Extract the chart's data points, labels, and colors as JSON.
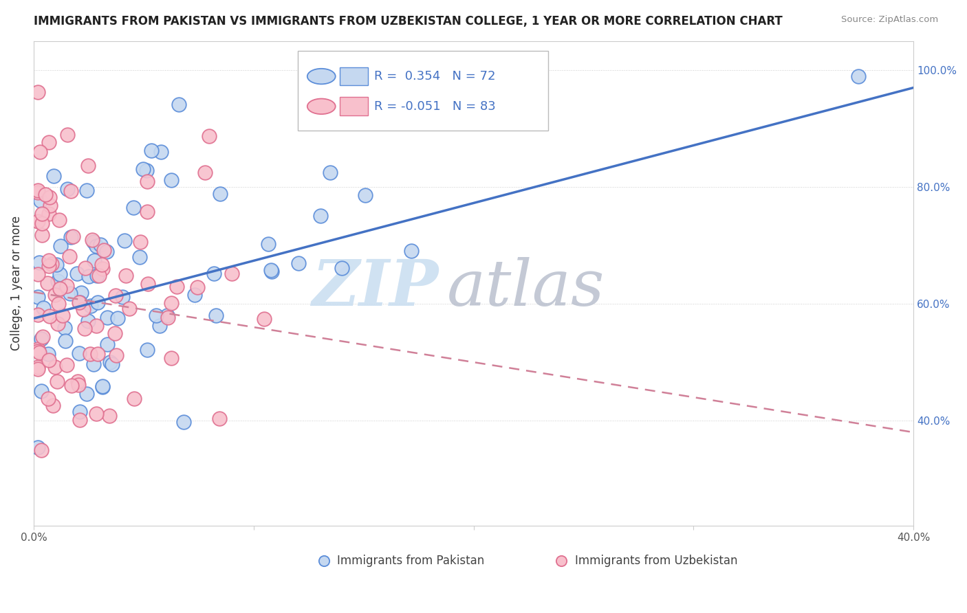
{
  "title": "IMMIGRANTS FROM PAKISTAN VS IMMIGRANTS FROM UZBEKISTAN COLLEGE, 1 YEAR OR MORE CORRELATION CHART",
  "source": "Source: ZipAtlas.com",
  "ylabel": "College, 1 year or more",
  "xlim": [
    0.0,
    0.4
  ],
  "ylim": [
    0.22,
    1.05
  ],
  "ytick_positions": [
    0.4,
    0.6,
    0.8,
    1.0
  ],
  "ytick_labels": [
    "40.0%",
    "60.0%",
    "80.0%",
    "100.0%"
  ],
  "xtick_positions": [
    0.0,
    0.1,
    0.2,
    0.3,
    0.4
  ],
  "xtick_labels": [
    "0.0%",
    "",
    "",
    "",
    "40.0%"
  ],
  "pakistan_R": 0.354,
  "pakistan_N": 72,
  "uzbekistan_R": -0.051,
  "uzbekistan_N": 83,
  "pakistan_color": "#c5d8f0",
  "uzbekistan_color": "#f8c0cc",
  "pakistan_edge_color": "#5b8dd9",
  "uzbekistan_edge_color": "#e07090",
  "pakistan_line_color": "#4472c4",
  "uzbekistan_line_color": "#d08098",
  "legend_label_pakistan": "Immigrants from Pakistan",
  "legend_label_uzbekistan": "Immigrants from Uzbekistan",
  "watermark_zip": "ZIP",
  "watermark_atlas": "atlas",
  "r_n_color": "#4472c4",
  "legend_box_color": "#4472c4",
  "pak_line_y0": 0.575,
  "pak_line_y1": 0.97,
  "uzb_line_y0": 0.62,
  "uzb_line_y1": 0.38
}
